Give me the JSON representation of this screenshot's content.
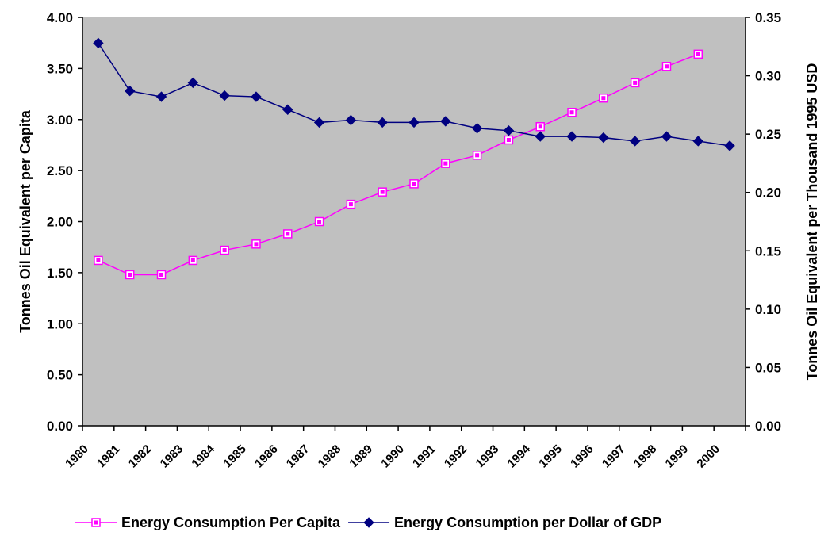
{
  "chart_data": {
    "type": "line",
    "categories": [
      "1980",
      "1981",
      "1982",
      "1983",
      "1984",
      "1985",
      "1986",
      "1987",
      "1988",
      "1989",
      "1990",
      "1991",
      "1992",
      "1993",
      "1994",
      "1995",
      "1996",
      "1997",
      "1998",
      "1999",
      "2000"
    ],
    "ylabel": "Tonnes Oil Equivalent per Capita",
    "y2label": "Tonnes Oil Equivalent per Thousand 1995 USD",
    "ylim": [
      0,
      4
    ],
    "y2lim": [
      0,
      0.35
    ],
    "yticks": [
      "0.00",
      "0.50",
      "1.00",
      "1.50",
      "2.00",
      "2.50",
      "3.00",
      "3.50",
      "4.00"
    ],
    "y2ticks": [
      "0.00",
      "0.05",
      "0.10",
      "0.15",
      "0.20",
      "0.25",
      "0.30",
      "0.35"
    ],
    "grid": false,
    "plot_background": "#c0c0c0",
    "legend_position": "bottom",
    "series": [
      {
        "name": "Energy Consumption Per Capita",
        "axis": "left",
        "color": "#ff00ff",
        "marker": "square",
        "values": [
          1.62,
          1.48,
          1.48,
          1.62,
          1.72,
          1.78,
          1.88,
          2.0,
          2.17,
          2.29,
          2.37,
          2.57,
          2.65,
          2.8,
          2.93,
          3.07,
          3.21,
          3.36,
          3.52,
          3.64,
          null
        ]
      },
      {
        "name": "Energy Consumption per Dollar of GDP",
        "axis": "right",
        "color": "#000080",
        "marker": "diamond",
        "values": [
          0.328,
          0.287,
          0.282,
          0.294,
          0.283,
          0.282,
          0.271,
          0.26,
          0.262,
          0.26,
          0.26,
          0.261,
          0.255,
          0.253,
          0.248,
          0.248,
          0.247,
          0.244,
          0.248,
          0.244,
          0.24
        ]
      }
    ]
  }
}
